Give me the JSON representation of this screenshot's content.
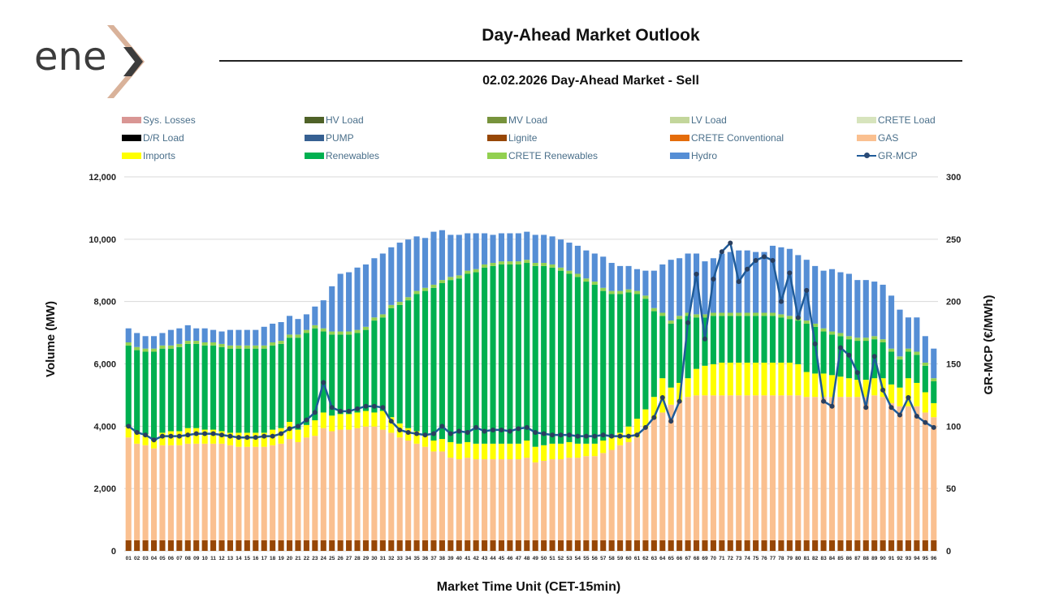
{
  "logo": {
    "text": "ene",
    "accent_color": "#d9b29a",
    "text_color": "#3c3c3c"
  },
  "title": "Day-Ahead Market Outlook",
  "subtitle": "02.02.2026  Day-Ahead Market - Sell",
  "chart_data": {
    "type": "bar",
    "stacked": true,
    "xlabel": "Market Time Unit (CET-15min)",
    "ylabel": "Volume (MW)",
    "y2label": "GR-MCP (€/MWh)",
    "ylim": [
      0,
      12000
    ],
    "y2lim": [
      0,
      300
    ],
    "yticks": [
      "0",
      "2,000",
      "4,000",
      "6,000",
      "8,000",
      "10,000",
      "12,000"
    ],
    "y2ticks": [
      "0",
      "50",
      "100",
      "150",
      "200",
      "250",
      "300"
    ],
    "grid": true,
    "legend_position": "top",
    "categories": [
      "01",
      "02",
      "03",
      "04",
      "05",
      "06",
      "07",
      "08",
      "09",
      "10",
      "11",
      "12",
      "13",
      "14",
      "15",
      "16",
      "17",
      "18",
      "19",
      "20",
      "21",
      "22",
      "23",
      "24",
      "25",
      "26",
      "27",
      "28",
      "29",
      "30",
      "31",
      "32",
      "33",
      "34",
      "35",
      "36",
      "37",
      "38",
      "39",
      "40",
      "41",
      "42",
      "43",
      "44",
      "45",
      "46",
      "47",
      "48",
      "49",
      "50",
      "51",
      "52",
      "53",
      "54",
      "55",
      "56",
      "57",
      "58",
      "59",
      "60",
      "61",
      "62",
      "63",
      "64",
      "65",
      "66",
      "67",
      "68",
      "69",
      "70",
      "71",
      "72",
      "73",
      "74",
      "75",
      "76",
      "77",
      "78",
      "79",
      "80",
      "81",
      "82",
      "83",
      "84",
      "85",
      "86",
      "87",
      "88",
      "89",
      "90",
      "91",
      "92",
      "93",
      "94",
      "95",
      "96"
    ],
    "legend": [
      {
        "name": "Sys. Losses",
        "color": "#d99694",
        "kind": "bar"
      },
      {
        "name": "HV Load",
        "color": "#4f6228",
        "kind": "bar"
      },
      {
        "name": "MV Load",
        "color": "#77933c",
        "kind": "bar"
      },
      {
        "name": "LV Load",
        "color": "#c3d69b",
        "kind": "bar"
      },
      {
        "name": "CRETE Load",
        "color": "#d7e4bd",
        "kind": "bar"
      },
      {
        "name": "D/R Load",
        "color": "#000000",
        "kind": "bar"
      },
      {
        "name": "PUMP",
        "color": "#366092",
        "kind": "bar"
      },
      {
        "name": "Lignite",
        "color": "#974706",
        "kind": "bar"
      },
      {
        "name": "CRETE Conventional",
        "color": "#e46c0a",
        "kind": "bar"
      },
      {
        "name": "GAS",
        "color": "#fac090",
        "kind": "bar"
      },
      {
        "name": "Imports",
        "color": "#ffff00",
        "kind": "bar"
      },
      {
        "name": "Renewables",
        "color": "#00b050",
        "kind": "bar"
      },
      {
        "name": "CRETE Renewables",
        "color": "#92d050",
        "kind": "bar"
      },
      {
        "name": "Hydro",
        "color": "#558ed5",
        "kind": "bar"
      },
      {
        "name": "GR-MCP",
        "color": "#1f5b99",
        "kind": "line"
      }
    ],
    "series": [
      {
        "name": "Lignite",
        "color": "#974706",
        "values": [
          340,
          340,
          340,
          340,
          340,
          340,
          340,
          340,
          340,
          340,
          340,
          340,
          340,
          340,
          340,
          340,
          340,
          340,
          340,
          340,
          340,
          340,
          340,
          340,
          340,
          340,
          340,
          340,
          340,
          340,
          340,
          340,
          340,
          340,
          340,
          340,
          340,
          340,
          340,
          340,
          340,
          340,
          340,
          340,
          340,
          340,
          340,
          340,
          340,
          340,
          340,
          340,
          340,
          340,
          340,
          340,
          340,
          340,
          340,
          340,
          340,
          340,
          340,
          340,
          340,
          340,
          340,
          340,
          340,
          340,
          340,
          340,
          340,
          340,
          340,
          340,
          340,
          340,
          340,
          340,
          340,
          340,
          340,
          340,
          340,
          340,
          340,
          340,
          340,
          340,
          340,
          340,
          340,
          340,
          340,
          340
        ]
      },
      {
        "name": "GAS",
        "color": "#fac090",
        "values": [
          3300,
          3100,
          3050,
          2950,
          3050,
          3050,
          3050,
          3100,
          3100,
          3100,
          3100,
          3100,
          3050,
          3000,
          3000,
          3000,
          3000,
          3050,
          3100,
          3250,
          3150,
          3300,
          3350,
          3600,
          3500,
          3550,
          3550,
          3600,
          3650,
          3650,
          3550,
          3450,
          3300,
          3200,
          3100,
          3000,
          2850,
          2850,
          2650,
          2600,
          2650,
          2600,
          2600,
          2600,
          2600,
          2600,
          2600,
          2650,
          2500,
          2550,
          2600,
          2600,
          2650,
          2650,
          2700,
          2700,
          2800,
          2900,
          3050,
          3150,
          3300,
          3600,
          3900,
          4100,
          4350,
          4450,
          4600,
          4650,
          4650,
          4650,
          4650,
          4650,
          4650,
          4650,
          4650,
          4650,
          4650,
          4650,
          4650,
          4650,
          4600,
          4600,
          4600,
          4600,
          4600,
          4600,
          4600,
          4600,
          4650,
          4600,
          4400,
          4300,
          4300,
          4300,
          4100,
          3950
        ]
      },
      {
        "name": "Imports",
        "color": "#ffff00",
        "values": [
          350,
          350,
          350,
          250,
          400,
          450,
          450,
          500,
          500,
          450,
          450,
          400,
          400,
          450,
          450,
          450,
          450,
          500,
          500,
          550,
          400,
          400,
          500,
          500,
          500,
          500,
          500,
          500,
          500,
          450,
          600,
          500,
          450,
          400,
          400,
          400,
          350,
          400,
          500,
          500,
          500,
          500,
          500,
          500,
          500,
          500,
          500,
          550,
          500,
          500,
          500,
          500,
          500,
          450,
          400,
          400,
          400,
          400,
          400,
          500,
          600,
          600,
          700,
          1100,
          550,
          600,
          600,
          850,
          950,
          1000,
          1050,
          1050,
          1050,
          1050,
          1050,
          1050,
          1050,
          1050,
          1050,
          1000,
          800,
          750,
          750,
          700,
          650,
          600,
          550,
          550,
          550,
          600,
          600,
          600,
          900,
          750,
          650,
          450
        ]
      },
      {
        "name": "Renewables",
        "color": "#00b050",
        "values": [
          2600,
          2650,
          2650,
          2850,
          2700,
          2650,
          2700,
          2700,
          2700,
          2700,
          2700,
          2700,
          2700,
          2700,
          2700,
          2700,
          2700,
          2700,
          2700,
          2700,
          2950,
          2950,
          2950,
          2600,
          2600,
          2550,
          2550,
          2550,
          2600,
          2950,
          3000,
          3500,
          3800,
          4100,
          4400,
          4600,
          4900,
          5000,
          5200,
          5300,
          5400,
          5500,
          5650,
          5700,
          5750,
          5750,
          5750,
          5700,
          5800,
          5750,
          5650,
          5550,
          5400,
          5350,
          5200,
          5100,
          4800,
          4600,
          4450,
          4300,
          4000,
          3550,
          2750,
          2000,
          2050,
          2050,
          2000,
          1650,
          1550,
          1550,
          1500,
          1500,
          1500,
          1500,
          1500,
          1500,
          1500,
          1450,
          1400,
          1400,
          1550,
          1500,
          1350,
          1300,
          1300,
          1250,
          1250,
          1250,
          1250,
          1150,
          1050,
          900,
          850,
          900,
          850,
          700
        ]
      },
      {
        "name": "CRETE Renewables",
        "color": "#92d050",
        "values": [
          100,
          100,
          100,
          100,
          100,
          100,
          100,
          100,
          100,
          100,
          100,
          100,
          100,
          100,
          100,
          100,
          100,
          100,
          100,
          100,
          100,
          100,
          100,
          100,
          100,
          100,
          100,
          100,
          100,
          100,
          100,
          100,
          100,
          100,
          100,
          100,
          100,
          100,
          100,
          100,
          100,
          100,
          100,
          100,
          100,
          100,
          100,
          100,
          100,
          100,
          100,
          100,
          100,
          100,
          100,
          100,
          100,
          100,
          100,
          100,
          100,
          100,
          100,
          100,
          100,
          100,
          100,
          100,
          100,
          100,
          100,
          100,
          100,
          100,
          100,
          100,
          100,
          100,
          100,
          100,
          100,
          100,
          100,
          100,
          100,
          100,
          100,
          100,
          100,
          100,
          100,
          100,
          100,
          100,
          100,
          100
        ]
      },
      {
        "name": "Hydro",
        "color": "#558ed5",
        "values": [
          450,
          450,
          400,
          400,
          400,
          500,
          500,
          500,
          400,
          450,
          400,
          400,
          500,
          500,
          500,
          500,
          600,
          600,
          600,
          600,
          500,
          500,
          600,
          900,
          1450,
          1850,
          1900,
          2000,
          2000,
          1900,
          1950,
          1850,
          1900,
          1850,
          1750,
          1600,
          1700,
          1600,
          1350,
          1300,
          1200,
          1150,
          1000,
          900,
          900,
          900,
          900,
          900,
          900,
          900,
          900,
          900,
          900,
          900,
          900,
          900,
          1000,
          900,
          800,
          750,
          700,
          800,
          1200,
          1550,
          1950,
          1850,
          1900,
          1950,
          1700,
          1750,
          1900,
          1950,
          2000,
          2000,
          1950,
          1950,
          2150,
          2150,
          2150,
          2000,
          1950,
          1850,
          1850,
          2000,
          1950,
          2000,
          1850,
          1850,
          1750,
          1750,
          1700,
          1500,
          1000,
          1100,
          850,
          950
        ]
      }
    ],
    "line": {
      "name": "GR-MCP",
      "color": "#1f5b99",
      "axis": "y2",
      "values": [
        100,
        95,
        93,
        89,
        92,
        92,
        92,
        93,
        94,
        94,
        94,
        93,
        92,
        91,
        91,
        91,
        92,
        92,
        94,
        98,
        100,
        105,
        111,
        135,
        115,
        112,
        112,
        114,
        116,
        116,
        115,
        104,
        97,
        95,
        94,
        93,
        94,
        100,
        94,
        96,
        95,
        99,
        96,
        97,
        97,
        96,
        98,
        99,
        95,
        94,
        93,
        93,
        93,
        92,
        92,
        92,
        93,
        92,
        92,
        92,
        93,
        99,
        107,
        123,
        104,
        120,
        183,
        222,
        170,
        218,
        240,
        247,
        216,
        226,
        233,
        236,
        233,
        200,
        223,
        187,
        209,
        166,
        120,
        116,
        163,
        157,
        143,
        115,
        156,
        129,
        115,
        109,
        123,
        108,
        103,
        99
      ]
    }
  }
}
